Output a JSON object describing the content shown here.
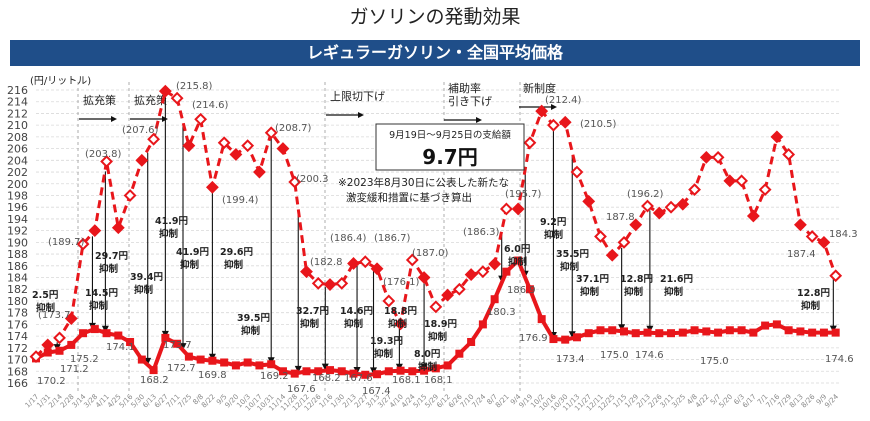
{
  "page_title": "ガソリンの発動効果",
  "header_band": "レギュラーガソリン・全国平均価格",
  "colors": {
    "band": "#1f4e89",
    "series": "#e8161b",
    "grid": "#d9d9d9"
  },
  "chart_data": {
    "type": "line",
    "title": "レギュラーガソリン・全国平均価格",
    "ylabel": "(円/リットル)",
    "ylim": [
      166,
      216
    ],
    "yticks": [
      166,
      168,
      170,
      172,
      174,
      176,
      178,
      180,
      182,
      184,
      186,
      188,
      190,
      192,
      194,
      196,
      198,
      200,
      202,
      204,
      206,
      208,
      210,
      212,
      214,
      216
    ],
    "grid": true,
    "categories": [
      "1/17",
      "1/31",
      "2/14",
      "2/28",
      "3/14",
      "3/28",
      "4/11",
      "4/25",
      "5/16",
      "5/30",
      "6/13",
      "6/27",
      "7/11",
      "7/25",
      "8/8",
      "8/22",
      "9/5",
      "9/20",
      "10/3",
      "10/17",
      "10/31",
      "11/14",
      "11/28",
      "12/12",
      "12/26",
      "1/16",
      "1/30",
      "2/13",
      "2/27",
      "3/13",
      "3/27",
      "4/10",
      "4/24",
      "5/15",
      "5/29",
      "6/12",
      "6/26",
      "7/10",
      "7/24",
      "8/7",
      "8/21",
      "9/4",
      "9/19",
      "10/2",
      "10/16",
      "10/30",
      "11/13",
      "11/27",
      "12/11",
      "12/25",
      "1/15",
      "1/29",
      "2/13",
      "2/26",
      "3/11",
      "3/25",
      "4/8",
      "4/22",
      "5/7",
      "5/20",
      "6/3",
      "6/17",
      "7/1",
      "7/16",
      "7/29",
      "8/13",
      "8/26",
      "9/9",
      "9/24"
    ],
    "series": [
      {
        "style": "dashed-diamond",
        "values": [
          170.5,
          172.5,
          173.7,
          177,
          189.7,
          192,
          203.8,
          192.5,
          198,
          204,
          207.6,
          215.8,
          214.6,
          206.5,
          211,
          199.4,
          207,
          205,
          206.5,
          202,
          208.7,
          206,
          200.3,
          185,
          183,
          182.8,
          183,
          186.4,
          186.7,
          185.5,
          180,
          176.1,
          187.0,
          184,
          179,
          181,
          182,
          184.5,
          185,
          186.3,
          195.7,
          195.7,
          207,
          212.4,
          210,
          210.5,
          202,
          197,
          191,
          187.8,
          190,
          193,
          196.2,
          195,
          196,
          196.5,
          199,
          204.5,
          204.5,
          200.5,
          200.5,
          194.5,
          199,
          208,
          205,
          193,
          191,
          190,
          184.3
        ]
      },
      {
        "style": "solid-square",
        "values": [
          170.2,
          171.2,
          171.5,
          172.5,
          174.5,
          175.2,
          174.5,
          174.1,
          173,
          170,
          168.2,
          173.7,
          172.7,
          170.5,
          170,
          169.8,
          169.5,
          169,
          169.5,
          169,
          169.2,
          168,
          167.6,
          168,
          168,
          168.2,
          168,
          167.6,
          167.4,
          167.5,
          168,
          168.1,
          168,
          168.1,
          168.5,
          169,
          171,
          173,
          176,
          180.3,
          185,
          186.9,
          182,
          176.9,
          173.5,
          173.4,
          173.8,
          174.5,
          175,
          175,
          174.8,
          174.5,
          174.6,
          174.5,
          174.5,
          174.6,
          175,
          174.8,
          174.6,
          175,
          175,
          174.6,
          175.8,
          176,
          175,
          174.8,
          174.6,
          174.6,
          174.6
        ]
      }
    ],
    "value_labels": [
      "(189.7)",
      "(203.8)",
      "(207.6)",
      "(215.8)",
      "(214.6)",
      "(199.4)",
      "(208.7)",
      "(200.3",
      "(182.8",
      "(186.4)",
      "(186.7)",
      "(176.1)",
      "(187.0)",
      "(186.3)",
      "(195.7)",
      "(212.4)",
      "(210.5)",
      "187.8",
      "(196.2)",
      "187.4",
      "184.3",
      "170.2",
      "(173.7",
      "171.2",
      "175.2",
      "174.1",
      "168.2",
      "173.7",
      "172.7",
      "169.8",
      "169.2",
      "167.6",
      "168.2",
      "167.6",
      "167.4",
      "168.1",
      "168.1",
      "180.3",
      "186.9",
      "176.9",
      "173.4",
      "175.0",
      "174.6",
      "175.0",
      "174.6"
    ],
    "suppression_labels": [
      {
        "amount": "2.5円",
        "word": "抑制"
      },
      {
        "amount": "14.5円",
        "word": "抑制"
      },
      {
        "amount": "29.7円",
        "word": "抑制"
      },
      {
        "amount": "39.4円",
        "word": "抑制"
      },
      {
        "amount": "41.9円",
        "word": "抑制"
      },
      {
        "amount": "41.9円",
        "word": "抑制"
      },
      {
        "amount": "29.6円",
        "word": "抑制"
      },
      {
        "amount": "39.5円",
        "word": "抑制"
      },
      {
        "amount": "32.7円",
        "word": "抑制"
      },
      {
        "amount": "14.6円",
        "word": "抑制"
      },
      {
        "amount": "18.8円",
        "word": "抑制"
      },
      {
        "amount": "19.3円",
        "word": "抑制"
      },
      {
        "amount": "8.0円",
        "word": "抑制"
      },
      {
        "amount": "18.9円",
        "word": "抑制"
      },
      {
        "amount": "6.0円",
        "word": "抑制"
      },
      {
        "amount": "9.2円",
        "word": "抑制"
      },
      {
        "amount": "35.5円",
        "word": "抑制"
      },
      {
        "amount": "37.1円",
        "word": "抑制"
      },
      {
        "amount": "12.8円",
        "word": "抑制"
      },
      {
        "amount": "21.6円",
        "word": "抑制"
      },
      {
        "amount": "12.8円",
        "word": "抑制"
      }
    ],
    "phase_labels": [
      [
        "拡充策"
      ],
      [
        "拡充策"
      ],
      [
        "上限切下げ"
      ],
      [
        "補助率",
        "引き下げ"
      ],
      [
        "新制度"
      ]
    ],
    "callout": {
      "heading": "9月19日～9月25日の支給額",
      "amount": "9.7円"
    },
    "note": [
      "※2023年8月30日に公表した新たな",
      "激変緩和措置に基づき算出"
    ]
  }
}
